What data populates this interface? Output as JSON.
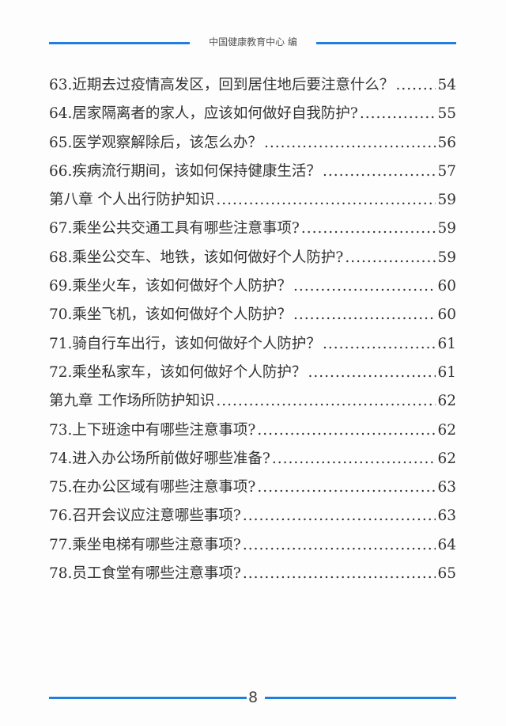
{
  "header": {
    "text": "中国健康教育中心 编"
  },
  "toc": [
    {
      "title": "63.近期去过疫情高发区，回到居住地后要注意什么？",
      "page": "54"
    },
    {
      "title": "64.居家隔离者的家人，应该如何做好自我防护?",
      "page": "55"
    },
    {
      "title": "65.医学观察解除后，该怎么办？",
      "page": "56"
    },
    {
      "title": "66.疾病流行期间，该如何保持健康生活？",
      "page": "57"
    },
    {
      "title": "第八章 个人出行防护知识",
      "page": "59"
    },
    {
      "title": "67.乘坐公共交通工具有哪些注意事项?",
      "page": "59"
    },
    {
      "title": "68.乘坐公交车、地铁，该如何做好个人防护?",
      "page": "59"
    },
    {
      "title": "69.乘坐火车，该如何做好个人防护？",
      "page": "60"
    },
    {
      "title": "70.乘坐飞机，该如何做好个人防护？",
      "page": "60"
    },
    {
      "title": "71.骑自行车出行，该如何做好个人防护？",
      "page": "61"
    },
    {
      "title": "72.乘坐私家车，该如何做好个人防护？",
      "page": "61"
    },
    {
      "title": "第九章 工作场所防护知识",
      "page": "62"
    },
    {
      "title": "73.上下班途中有哪些注意事项?",
      "page": "62"
    },
    {
      "title": "74.进入办公场所前做好哪些准备?",
      "page": "62"
    },
    {
      "title": "75.在办公区域有哪些注意事项?",
      "page": "63"
    },
    {
      "title": "76.召开会议应注意哪些事项?",
      "page": "63"
    },
    {
      "title": "77.乘坐电梯有哪些注意事项?",
      "page": "64"
    },
    {
      "title": "78.员工食堂有哪些注意事项?",
      "page": "65"
    }
  ],
  "footer": {
    "page_number": "8"
  },
  "colors": {
    "rule": "#1f7fe0",
    "text": "#333333"
  }
}
